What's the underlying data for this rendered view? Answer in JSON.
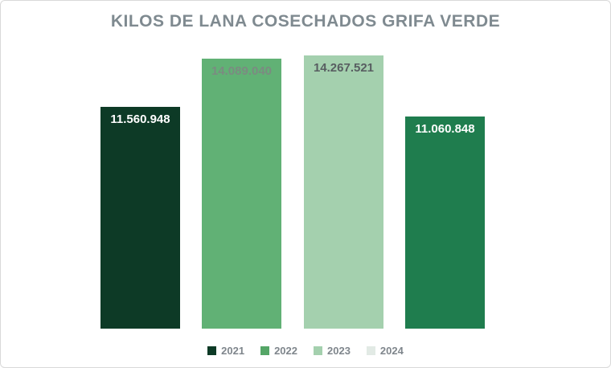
{
  "chart_data": {
    "type": "bar",
    "title": "KILOS DE LANA COSECHADOS GRIFA VERDE",
    "categories": [
      "2021",
      "2022",
      "2023",
      "2024"
    ],
    "values": [
      11560948,
      14089040,
      14267521,
      11060848
    ],
    "value_labels": [
      "11.560.948",
      "14.089.040",
      "14.267.521",
      "11.060.848"
    ],
    "bar_colors": [
      "#0d3a26",
      "#61b175",
      "#a4d0ae",
      "#1f7d4e"
    ],
    "label_colors": [
      "#ffffff",
      "#7b8b81",
      "#585e61",
      "#ffffff"
    ],
    "ylim": [
      0,
      14267521
    ],
    "xlabel": "",
    "ylabel": "",
    "gridlines": false,
    "axes_visible": false,
    "legend": {
      "position": "bottom",
      "items": [
        {
          "label": "2021",
          "swatch": "#0d3a26"
        },
        {
          "label": "2022",
          "swatch": "#55a667"
        },
        {
          "label": "2023",
          "swatch": "#a4d0ae"
        },
        {
          "label": "2024",
          "swatch": "#e2eae5"
        }
      ]
    }
  },
  "colors": {
    "background": "#ffffff",
    "frame_border": "#d9d9d9",
    "title_text": "#7f8a90",
    "legend_text": "#7f868c"
  }
}
